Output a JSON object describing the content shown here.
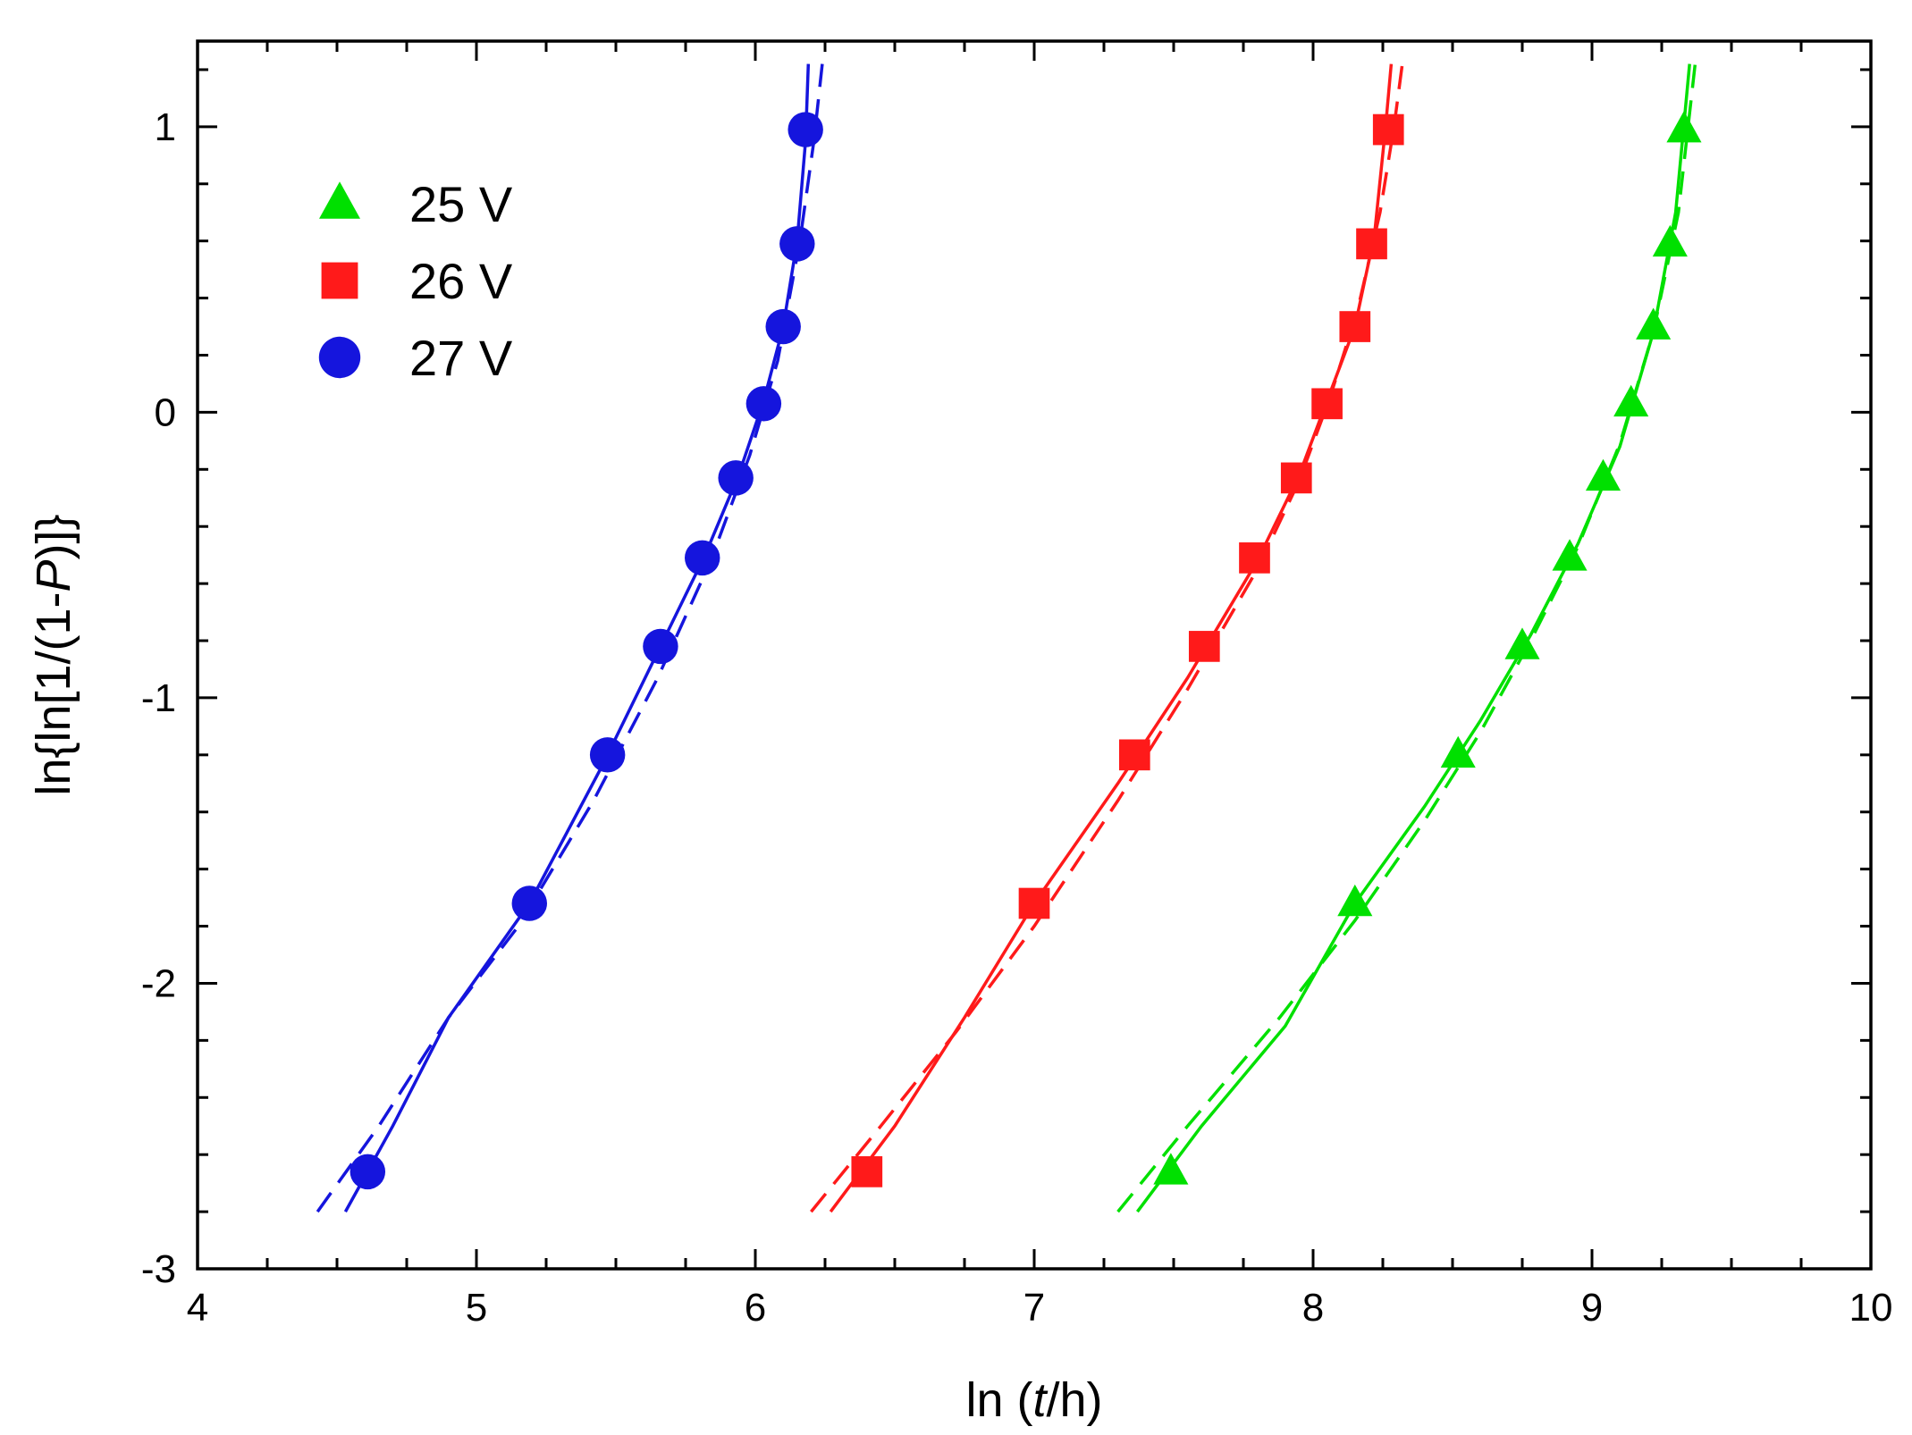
{
  "chart_data": {
    "type": "scatter",
    "title": "",
    "xlabel_parts": [
      "ln (",
      "t",
      "/h)"
    ],
    "ylabel_parts": [
      "ln{ln[1/(1-",
      "P",
      ")]}"
    ],
    "xlim": [
      4,
      10
    ],
    "ylim": [
      -3,
      1.3
    ],
    "x_ticks": [
      4,
      5,
      6,
      7,
      8,
      9,
      10
    ],
    "x_tick_labels": [
      "4",
      "5",
      "6",
      "7",
      "8",
      "9",
      "10"
    ],
    "y_ticks": [
      -3,
      -2,
      -1,
      0,
      1
    ],
    "y_tick_labels": [
      "-3",
      "-2",
      "-1",
      "0",
      "1"
    ],
    "legend_position": "top-left",
    "series": [
      {
        "name": "25 V",
        "color": "#00e000",
        "marker": "triangle",
        "points": [
          [
            7.49,
            -2.66
          ],
          [
            8.15,
            -1.72
          ],
          [
            8.52,
            -1.2
          ],
          [
            8.75,
            -0.82
          ],
          [
            8.92,
            -0.51
          ],
          [
            9.04,
            -0.23
          ],
          [
            9.14,
            0.03
          ],
          [
            9.22,
            0.3
          ],
          [
            9.28,
            0.59
          ],
          [
            9.33,
            0.99
          ]
        ],
        "solid_fit": [
          [
            7.37,
            -2.8
          ],
          [
            7.6,
            -2.5
          ],
          [
            7.9,
            -2.15
          ],
          [
            8.15,
            -1.72
          ],
          [
            8.4,
            -1.38
          ],
          [
            8.6,
            -1.08
          ],
          [
            8.78,
            -0.78
          ],
          [
            8.95,
            -0.46
          ],
          [
            9.1,
            -0.12
          ],
          [
            9.22,
            0.28
          ],
          [
            9.3,
            0.7
          ],
          [
            9.35,
            1.22
          ]
        ],
        "dashed_fit": [
          [
            7.3,
            -2.8
          ],
          [
            7.55,
            -2.5
          ],
          [
            7.88,
            -2.12
          ],
          [
            8.15,
            -1.78
          ],
          [
            8.4,
            -1.43
          ],
          [
            8.6,
            -1.12
          ],
          [
            8.78,
            -0.8
          ],
          [
            8.95,
            -0.47
          ],
          [
            9.1,
            -0.11
          ],
          [
            9.22,
            0.28
          ],
          [
            9.31,
            0.7
          ],
          [
            9.37,
            1.22
          ]
        ]
      },
      {
        "name": "26 V",
        "color": "#ff1a1a",
        "marker": "square",
        "points": [
          [
            6.4,
            -2.66
          ],
          [
            7.0,
            -1.72
          ],
          [
            7.36,
            -1.2
          ],
          [
            7.61,
            -0.82
          ],
          [
            7.79,
            -0.51
          ],
          [
            7.94,
            -0.23
          ],
          [
            8.05,
            0.03
          ],
          [
            8.15,
            0.3
          ],
          [
            8.21,
            0.59
          ],
          [
            8.27,
            0.99
          ]
        ],
        "solid_fit": [
          [
            6.27,
            -2.8
          ],
          [
            6.5,
            -2.5
          ],
          [
            6.75,
            -2.12
          ],
          [
            7.0,
            -1.72
          ],
          [
            7.3,
            -1.3
          ],
          [
            7.55,
            -0.93
          ],
          [
            7.8,
            -0.52
          ],
          [
            7.95,
            -0.22
          ],
          [
            8.05,
            0.04
          ],
          [
            8.15,
            0.3
          ],
          [
            8.22,
            0.62
          ],
          [
            8.26,
            1.0
          ],
          [
            8.28,
            1.22
          ]
        ],
        "dashed_fit": [
          [
            6.2,
            -2.8
          ],
          [
            6.45,
            -2.5
          ],
          [
            6.72,
            -2.17
          ],
          [
            7.0,
            -1.8
          ],
          [
            7.3,
            -1.36
          ],
          [
            7.55,
            -0.97
          ],
          [
            7.8,
            -0.55
          ],
          [
            7.95,
            -0.24
          ],
          [
            8.06,
            0.05
          ],
          [
            8.16,
            0.36
          ],
          [
            8.24,
            0.7
          ],
          [
            8.29,
            1.0
          ],
          [
            8.32,
            1.22
          ]
        ]
      },
      {
        "name": "27 V",
        "color": "#1515dd",
        "marker": "circle",
        "points": [
          [
            4.61,
            -2.66
          ],
          [
            5.19,
            -1.72
          ],
          [
            5.47,
            -1.2
          ],
          [
            5.66,
            -0.82
          ],
          [
            5.81,
            -0.51
          ],
          [
            5.93,
            -0.23
          ],
          [
            6.03,
            0.03
          ],
          [
            6.1,
            0.3
          ],
          [
            6.15,
            0.59
          ],
          [
            6.18,
            0.99
          ]
        ],
        "solid_fit": [
          [
            4.53,
            -2.8
          ],
          [
            4.7,
            -2.5
          ],
          [
            4.9,
            -2.12
          ],
          [
            5.19,
            -1.72
          ],
          [
            5.45,
            -1.24
          ],
          [
            5.65,
            -0.84
          ],
          [
            5.82,
            -0.5
          ],
          [
            5.94,
            -0.22
          ],
          [
            6.03,
            0.04
          ],
          [
            6.1,
            0.3
          ],
          [
            6.15,
            0.6
          ],
          [
            6.18,
            0.95
          ],
          [
            6.19,
            1.22
          ]
        ],
        "dashed_fit": [
          [
            4.43,
            -2.8
          ],
          [
            4.65,
            -2.5
          ],
          [
            4.9,
            -2.12
          ],
          [
            5.15,
            -1.8
          ],
          [
            5.42,
            -1.36
          ],
          [
            5.65,
            -0.93
          ],
          [
            5.84,
            -0.52
          ],
          [
            5.98,
            -0.15
          ],
          [
            6.08,
            0.18
          ],
          [
            6.16,
            0.6
          ],
          [
            6.21,
            0.95
          ],
          [
            6.24,
            1.22
          ]
        ]
      }
    ]
  }
}
